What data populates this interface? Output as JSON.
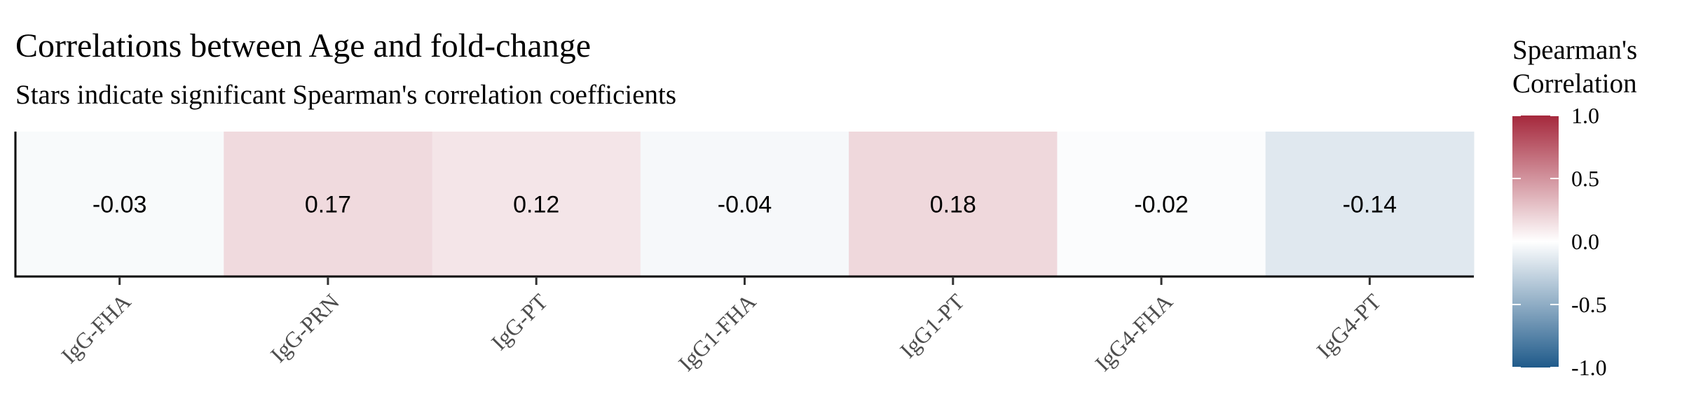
{
  "chart_data": {
    "type": "heatmap",
    "title": "Correlations between Age and fold-change",
    "subtitle": "Stars indicate significant Spearman's correlation coefficients",
    "categories": [
      "IgG-FHA",
      "IgG-PRN",
      "IgG-PT",
      "IgG1-FHA",
      "IgG1-PT",
      "IgG4-FHA",
      "IgG4-PT"
    ],
    "values": [
      -0.03,
      0.17,
      0.12,
      -0.04,
      0.18,
      -0.02,
      -0.14
    ],
    "labels": [
      "-0.03",
      "0.17",
      "0.12",
      "-0.04",
      "0.18",
      "-0.02",
      "-0.14"
    ],
    "xlabel": "",
    "ylabel": "",
    "legend": {
      "title_line1": "Spearman's",
      "title_line2": "Correlation",
      "range": [
        -1.0,
        1.0
      ],
      "ticks": [
        1.0,
        0.5,
        0.0,
        -0.5,
        -1.0
      ],
      "tick_labels": [
        "1.0",
        "0.5",
        "0.0",
        "-0.5",
        "-1.0"
      ],
      "position": "right"
    },
    "colors": {
      "low": "#1f5a8a",
      "mid": "#ffffff",
      "high": "#a5283c"
    },
    "grid": false
  }
}
